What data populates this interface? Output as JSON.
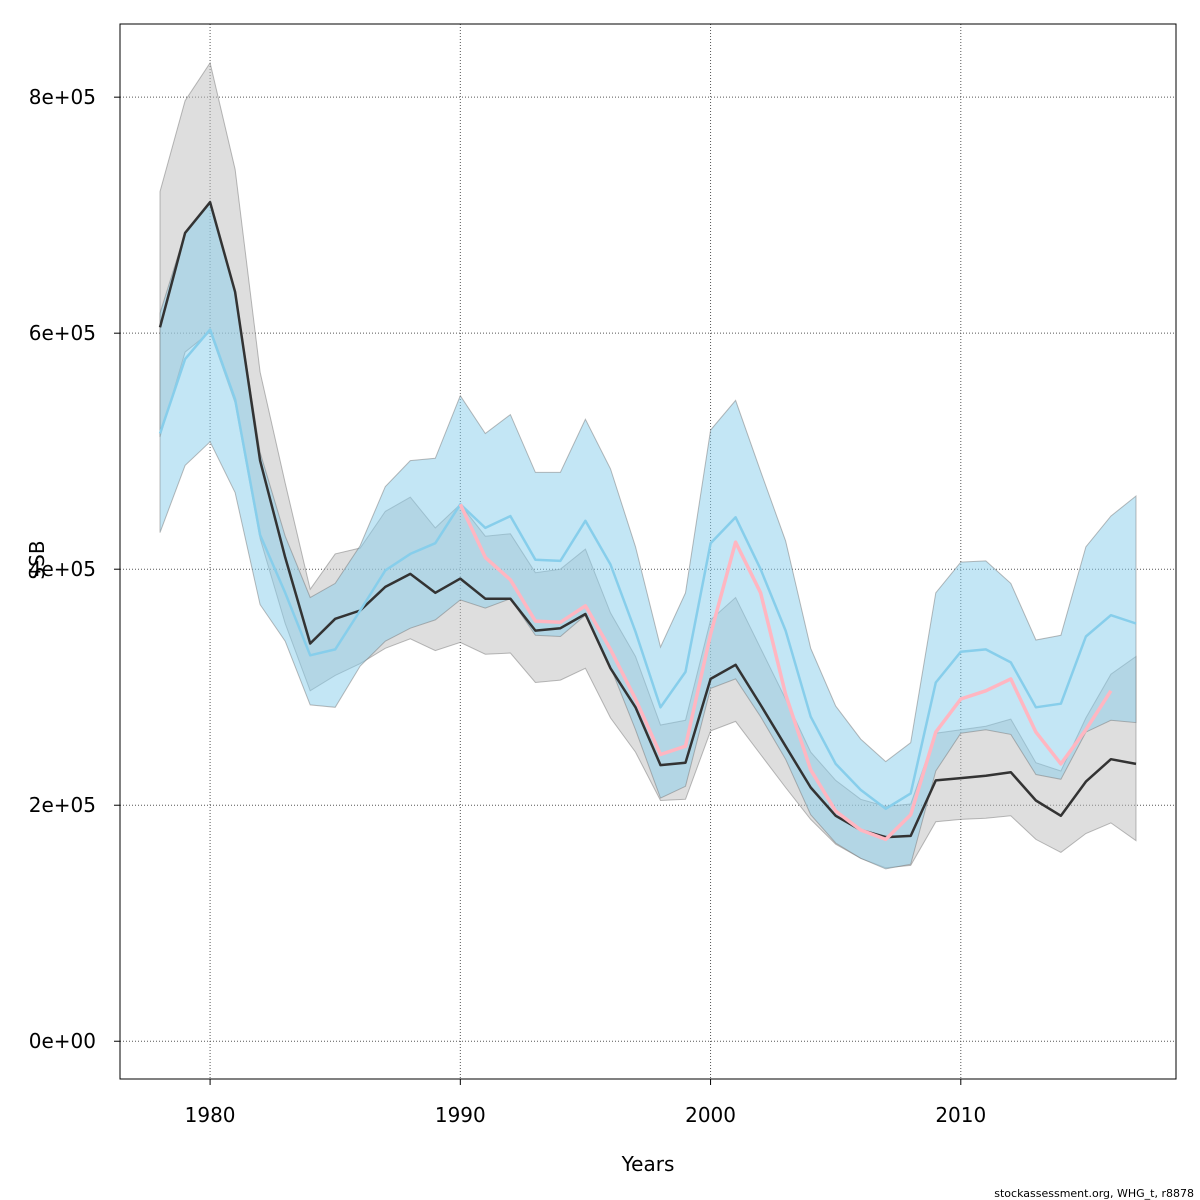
{
  "chart_data": {
    "type": "line",
    "title": "",
    "xlabel": "Years",
    "ylabel": "SSB",
    "xlim": [
      1976.4,
      2018.6
    ],
    "ylim": [
      -32000,
      862000
    ],
    "x_ticks": [
      1980,
      1990,
      2000,
      2010
    ],
    "x_tick_labels": [
      "1980",
      "1990",
      "2000",
      "2010"
    ],
    "y_ticks": [
      0,
      200000,
      400000,
      600000,
      800000
    ],
    "y_tick_labels": [
      "0e+00",
      "2e+05",
      "4e+05",
      "6e+05",
      "8e+05"
    ],
    "grid": true,
    "colors": {
      "gray_band": "#bebebe",
      "gray_line": "#333333",
      "blue_band": "#87ceeb",
      "blue_line": "#87ceeb",
      "pink_line": "#ffb6c1"
    },
    "series": [
      {
        "style": "gray",
        "x": [
          1978,
          1979,
          1980,
          1981,
          1982,
          1983,
          1984,
          1985,
          1986,
          1987,
          1988,
          1989,
          1990,
          1991,
          1992,
          1993,
          1994,
          1995,
          1996,
          1997,
          1998,
          1999,
          2000,
          2001,
          2002,
          2003,
          2004,
          2005,
          2006,
          2007,
          2008,
          2009,
          2010,
          2011,
          2012,
          2013,
          2014,
          2015,
          2016,
          2017
        ],
        "values": [
          605000,
          685000,
          711000,
          635000,
          492000,
          410000,
          337000,
          358000,
          365000,
          385000,
          396000,
          380000,
          392000,
          375000,
          375000,
          348000,
          350000,
          362000,
          316000,
          283000,
          234000,
          236000,
          307000,
          319000,
          285000,
          250000,
          215000,
          191000,
          179000,
          173000,
          174000,
          221000,
          223000,
          225000,
          228000,
          204000,
          191000,
          220000,
          239000,
          235000
        ],
        "lower": [
          512000,
          584000,
          601000,
          541000,
          426000,
          354000,
          297000,
          310000,
          320000,
          333000,
          341000,
          331000,
          338000,
          328000,
          329000,
          304000,
          306000,
          316000,
          274000,
          245000,
          204000,
          205000,
          263000,
          271000,
          243000,
          215000,
          188000,
          167000,
          155000,
          147000,
          149000,
          186000,
          188000,
          189000,
          191000,
          171000,
          160000,
          176000,
          185000,
          170000
        ],
        "upper": [
          720000,
          797000,
          829000,
          739000,
          567000,
          473000,
          383000,
          413000,
          418000,
          449000,
          461000,
          435000,
          455000,
          428000,
          430000,
          397000,
          400000,
          417000,
          363000,
          326000,
          268000,
          272000,
          357000,
          376000,
          333000,
          290000,
          245000,
          221000,
          205000,
          199000,
          201000,
          261000,
          264000,
          267000,
          273000,
          236000,
          229000,
          274000,
          311000,
          326000
        ]
      },
      {
        "style": "blue",
        "x": [
          1978,
          1979,
          1980,
          1981,
          1982,
          1983,
          1984,
          1985,
          1986,
          1987,
          1988,
          1989,
          1990,
          1991,
          1992,
          1993,
          1994,
          1995,
          1996,
          1997,
          1998,
          1999,
          2000,
          2001,
          2002,
          2003,
          2004,
          2005,
          2006,
          2007,
          2008,
          2009,
          2010,
          2011,
          2012,
          2013,
          2014,
          2015,
          2016,
          2017
        ],
        "values": [
          515000,
          578000,
          603000,
          544000,
          429000,
          380000,
          327000,
          332000,
          365000,
          399000,
          413000,
          422000,
          455000,
          435000,
          445000,
          408000,
          407000,
          441000,
          404000,
          347000,
          283000,
          313000,
          422000,
          444000,
          400000,
          348000,
          275000,
          235000,
          213000,
          197000,
          210000,
          304000,
          330000,
          332000,
          321000,
          283000,
          286000,
          343000,
          361000,
          354000
        ],
        "lower": [
          431000,
          488000,
          508000,
          465000,
          370000,
          339000,
          285000,
          283000,
          318000,
          339000,
          350000,
          357000,
          374000,
          367000,
          375000,
          344000,
          343000,
          361000,
          317000,
          264000,
          206000,
          216000,
          299000,
          307000,
          275000,
          239000,
          192000,
          168000,
          155000,
          146000,
          150000,
          229000,
          261000,
          264000,
          260000,
          226000,
          222000,
          262000,
          272000,
          270000
        ],
        "upper": [
          617000,
          685000,
          712000,
          636000,
          499000,
          428000,
          376000,
          388000,
          420000,
          470000,
          492000,
          494000,
          547000,
          515000,
          531000,
          482000,
          482000,
          527000,
          485000,
          419000,
          334000,
          380000,
          518000,
          543000,
          483000,
          424000,
          333000,
          284000,
          256000,
          237000,
          253000,
          380000,
          406000,
          407000,
          388000,
          340000,
          344000,
          419000,
          445000,
          462000
        ]
      },
      {
        "style": "pink",
        "x": [
          1990,
          1991,
          1992,
          1993,
          1994,
          1995,
          1996,
          1997,
          1998,
          1999,
          2000,
          2001,
          2002,
          2003,
          2004,
          2005,
          2006,
          2007,
          2008,
          2009,
          2010,
          2011,
          2012,
          2013,
          2014,
          2015,
          2016
        ],
        "values": [
          455000,
          410000,
          391000,
          356000,
          355000,
          369000,
          332000,
          290000,
          243000,
          250000,
          345000,
          423000,
          380000,
          294000,
          230000,
          195000,
          179000,
          171000,
          192000,
          262000,
          290000,
          297000,
          307000,
          262000,
          235000,
          264000,
          297000
        ]
      }
    ]
  },
  "footer": {
    "note": "stockassessment.org, WHG_t, r8878"
  }
}
